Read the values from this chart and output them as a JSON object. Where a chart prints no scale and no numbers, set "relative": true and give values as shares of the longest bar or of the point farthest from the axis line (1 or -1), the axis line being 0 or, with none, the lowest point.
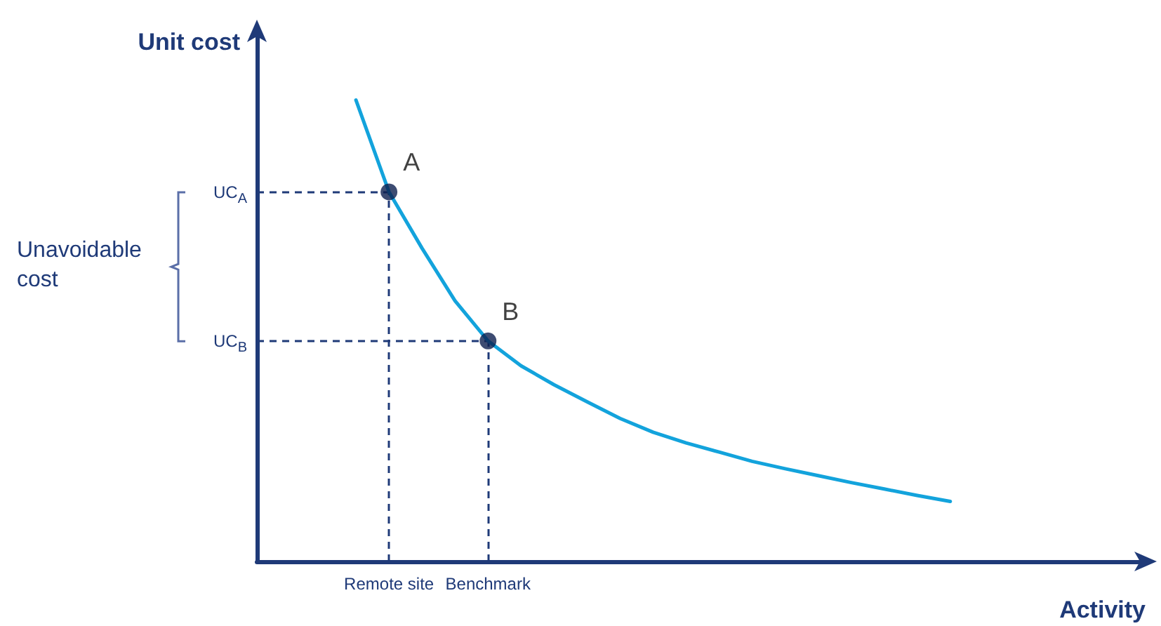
{
  "chart_data": {
    "type": "line",
    "xlabel": "Activity",
    "ylabel": "Unit cost",
    "relative": true,
    "categories": [
      null,
      null,
      null,
      null,
      "Remote site",
      null,
      null,
      "Benchmark",
      null,
      null,
      null,
      null,
      null,
      null,
      null,
      null,
      null,
      null,
      null,
      null,
      null,
      null,
      null,
      null,
      null,
      null,
      null,
      null
    ],
    "grid": false,
    "marker": "none",
    "line_style": "solid",
    "series": [
      {
        "color": "#13a3dc",
        "values": [
          null,
          null,
          null,
          1,
          0.801,
          0.679,
          0.565,
          0.478,
          0.424,
          0.383,
          0.346,
          0.31,
          0.28,
          0.257,
          0.237,
          0.217,
          0.201,
          0.186,
          0.171,
          0.157,
          0.143,
          0.13,
          null,
          null,
          null,
          null,
          null,
          null
        ]
      },
      {
        "type": "scatter",
        "marker": "circle",
        "line_style": "dashed",
        "color": "#0d1f4f",
        "x": [
          "Remote site",
          "Benchmark"
        ],
        "values": [
          0.801,
          0.478
        ]
      }
    ],
    "annotations": [
      {
        "text": "A",
        "x": "Remote site",
        "y": 0.801
      },
      {
        "text": "B",
        "x": "Benchmark",
        "y": 0.478
      },
      "UC$_{A}$",
      "UC$_{B}$",
      "Unavoidable cost"
    ]
  }
}
